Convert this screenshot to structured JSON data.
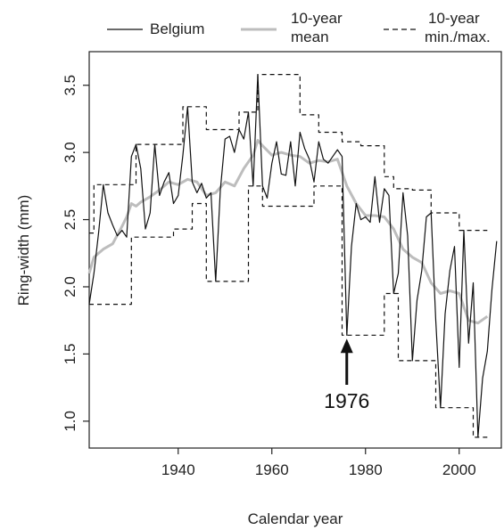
{
  "chart_data": {
    "type": "line",
    "title": "",
    "xlabel": "Calendar year",
    "ylabel": "Ring-width (mm)",
    "xlim": [
      1921,
      2009
    ],
    "ylim": [
      0.8,
      3.75
    ],
    "x_ticks": [
      1940,
      1960,
      1980,
      2000
    ],
    "y_ticks": [
      1.0,
      1.5,
      2.0,
      2.5,
      3.0,
      3.5
    ],
    "y_tick_labels": [
      "1.0",
      "1.5",
      "2.0",
      "2.5",
      "3.0",
      "3.5"
    ],
    "grid": false,
    "legend": {
      "placement": "top",
      "entries": [
        {
          "label_lines": [
            "Belgium"
          ],
          "style": "solid-black"
        },
        {
          "label_lines": [
            "10-year",
            "mean"
          ],
          "style": "solid-grey-thick"
        },
        {
          "label_lines": [
            "10-year",
            "min./max."
          ],
          "style": "dashed-black"
        }
      ]
    },
    "annotation": {
      "text": "1976",
      "x": 1976,
      "arrow_to_y": 1.64
    },
    "colors": {
      "belgium": "#111111",
      "mean": "#bdbdbd",
      "minmax": "#111111"
    },
    "series": [
      {
        "name": "Belgium",
        "x": [
          1921,
          1922,
          1923,
          1924,
          1925,
          1926,
          1927,
          1928,
          1929,
          1930,
          1931,
          1932,
          1933,
          1934,
          1935,
          1936,
          1937,
          1938,
          1939,
          1940,
          1941,
          1942,
          1943,
          1944,
          1945,
          1946,
          1947,
          1948,
          1949,
          1950,
          1951,
          1952,
          1953,
          1954,
          1955,
          1956,
          1957,
          1958,
          1959,
          1960,
          1961,
          1962,
          1963,
          1964,
          1965,
          1966,
          1967,
          1968,
          1969,
          1970,
          1971,
          1972,
          1973,
          1974,
          1975,
          1976,
          1977,
          1978,
          1979,
          1980,
          1981,
          1982,
          1983,
          1984,
          1985,
          1986,
          1987,
          1988,
          1989,
          1990,
          1991,
          1992,
          1993,
          1994,
          1995,
          1996,
          1997,
          1998,
          1999,
          2000,
          2001,
          2002,
          2003,
          2004,
          2005,
          2006,
          2007,
          2008
        ],
        "y": [
          1.87,
          2.1,
          2.4,
          2.76,
          2.55,
          2.46,
          2.38,
          2.42,
          2.37,
          2.97,
          3.06,
          2.88,
          2.43,
          2.55,
          3.06,
          2.68,
          2.78,
          2.85,
          2.62,
          2.68,
          2.98,
          3.34,
          2.78,
          2.7,
          2.77,
          2.66,
          2.7,
          2.04,
          2.72,
          3.1,
          3.12,
          3.0,
          3.17,
          3.1,
          3.3,
          2.75,
          3.58,
          2.75,
          2.66,
          2.92,
          3.08,
          2.84,
          2.83,
          3.08,
          2.75,
          3.15,
          3.03,
          2.95,
          2.78,
          3.08,
          2.95,
          2.92,
          2.97,
          3.02,
          2.97,
          1.64,
          2.3,
          2.62,
          2.5,
          2.52,
          2.48,
          2.82,
          2.48,
          2.73,
          2.68,
          1.95,
          2.1,
          2.7,
          2.38,
          1.45,
          1.9,
          2.12,
          2.52,
          2.55,
          1.75,
          1.1,
          1.8,
          2.12,
          2.3,
          1.4,
          2.42,
          1.58,
          2.03,
          0.88,
          1.32,
          1.52,
          1.98,
          2.34
        ]
      },
      {
        "name": "10-year mean",
        "x": [
          1921,
          1922,
          1924,
          1926,
          1928,
          1929,
          1930,
          1931,
          1932,
          1934,
          1936,
          1938,
          1940,
          1942,
          1944,
          1946,
          1948,
          1950,
          1952,
          1954,
          1956,
          1957,
          1958,
          1960,
          1962,
          1964,
          1966,
          1968,
          1970,
          1972,
          1974,
          1976,
          1978,
          1980,
          1982,
          1984,
          1986,
          1988,
          1990,
          1992,
          1994,
          1996,
          1998,
          2000,
          2002,
          2004,
          2006
        ],
        "y": [
          2.1,
          2.22,
          2.28,
          2.32,
          2.45,
          2.52,
          2.62,
          2.6,
          2.63,
          2.67,
          2.72,
          2.78,
          2.76,
          2.8,
          2.78,
          2.68,
          2.7,
          2.78,
          2.75,
          2.88,
          2.98,
          3.09,
          3.05,
          2.98,
          3.0,
          2.98,
          2.97,
          2.92,
          2.94,
          2.93,
          2.95,
          2.75,
          2.62,
          2.53,
          2.53,
          2.52,
          2.43,
          2.28,
          2.22,
          2.18,
          2.03,
          1.95,
          1.97,
          1.95,
          1.75,
          1.73,
          1.78
        ]
      },
      {
        "name": "10-year min.",
        "x": [
          1921,
          1930,
          1930,
          1935,
          1935,
          1939,
          1939,
          1943,
          1943,
          1946,
          1946,
          1955,
          1955,
          1958,
          1958,
          1966,
          1966,
          1969,
          1969,
          1975,
          1975,
          1984,
          1984,
          1987,
          1987,
          1990,
          1990,
          1995,
          1995,
          2003,
          2003,
          2006
        ],
        "y": [
          1.87,
          1.87,
          2.37,
          2.37,
          2.37,
          2.37,
          2.43,
          2.43,
          2.62,
          2.62,
          2.04,
          2.04,
          2.75,
          2.75,
          2.6,
          2.6,
          2.6,
          2.6,
          2.75,
          2.75,
          1.64,
          1.64,
          1.95,
          1.95,
          1.45,
          1.45,
          1.45,
          1.45,
          1.1,
          1.1,
          0.88,
          0.88
        ]
      },
      {
        "name": "10-year max.",
        "x": [
          1921,
          1922,
          1922,
          1929,
          1929,
          1931,
          1931,
          1938,
          1938,
          1941,
          1941,
          1946,
          1946,
          1953,
          1953,
          1955,
          1955,
          1957,
          1957,
          1966,
          1966,
          1970,
          1970,
          1975,
          1975,
          1979,
          1979,
          1984,
          1984,
          1986,
          1986,
          1990,
          1990,
          1994,
          1994,
          2000,
          2000,
          2002,
          2002,
          2006
        ],
        "y": [
          2.4,
          2.4,
          2.76,
          2.76,
          2.76,
          2.76,
          3.06,
          3.06,
          3.06,
          3.06,
          3.34,
          3.34,
          3.17,
          3.17,
          3.3,
          3.3,
          3.3,
          3.3,
          3.58,
          3.58,
          3.28,
          3.28,
          3.15,
          3.15,
          3.08,
          3.08,
          3.05,
          3.05,
          2.82,
          2.82,
          2.73,
          2.73,
          2.72,
          2.72,
          2.55,
          2.55,
          2.42,
          2.42,
          2.42,
          2.42
        ]
      }
    ]
  }
}
